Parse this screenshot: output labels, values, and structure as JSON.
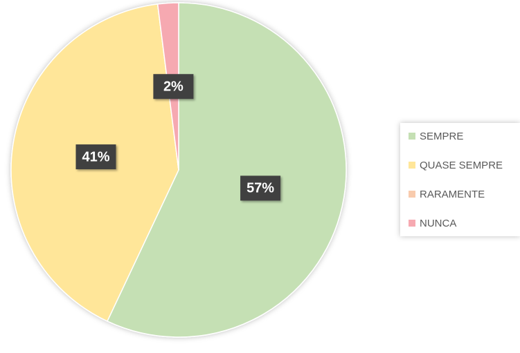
{
  "chart_data": {
    "type": "pie",
    "categories": [
      "SEMPRE",
      "QUASE SEMPRE",
      "RARAMENTE",
      "NUNCA"
    ],
    "values": [
      57,
      41,
      0,
      2
    ],
    "value_labels": [
      "57%",
      "41%",
      null,
      "2%"
    ],
    "colors": [
      "#c5e0b4",
      "#ffe699",
      "#f8cbad",
      "#f6a9b1"
    ],
    "legend": "right"
  }
}
